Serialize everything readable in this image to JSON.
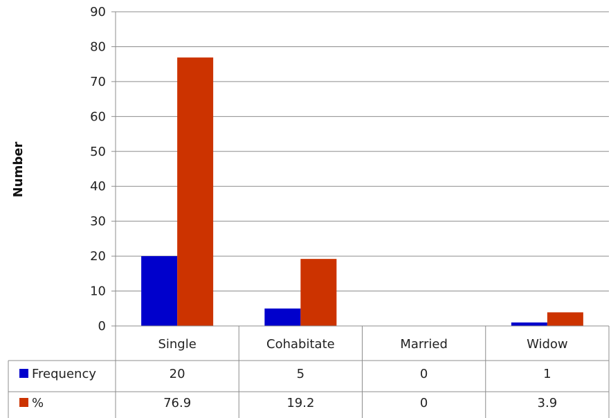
{
  "chart_data": {
    "type": "bar",
    "title": "",
    "xlabel": "",
    "ylabel": "Number",
    "ylim": [
      0,
      90
    ],
    "yticks": [
      0,
      10,
      20,
      30,
      40,
      50,
      60,
      70,
      80,
      90
    ],
    "grid": true,
    "legend": "data-table",
    "categories": [
      "Single",
      "Cohabitate",
      "Married",
      "Widow"
    ],
    "series": [
      {
        "name": "Frequency",
        "color": "#0000cc",
        "values": [
          20,
          5,
          0,
          1
        ],
        "labels": [
          "20",
          "5",
          "0",
          "1"
        ]
      },
      {
        "name": "%",
        "color": "#cc3300",
        "values": [
          76.9,
          19.2,
          0,
          3.9
        ],
        "labels": [
          "76.9",
          "19.2",
          "0",
          "3.9"
        ]
      }
    ]
  }
}
